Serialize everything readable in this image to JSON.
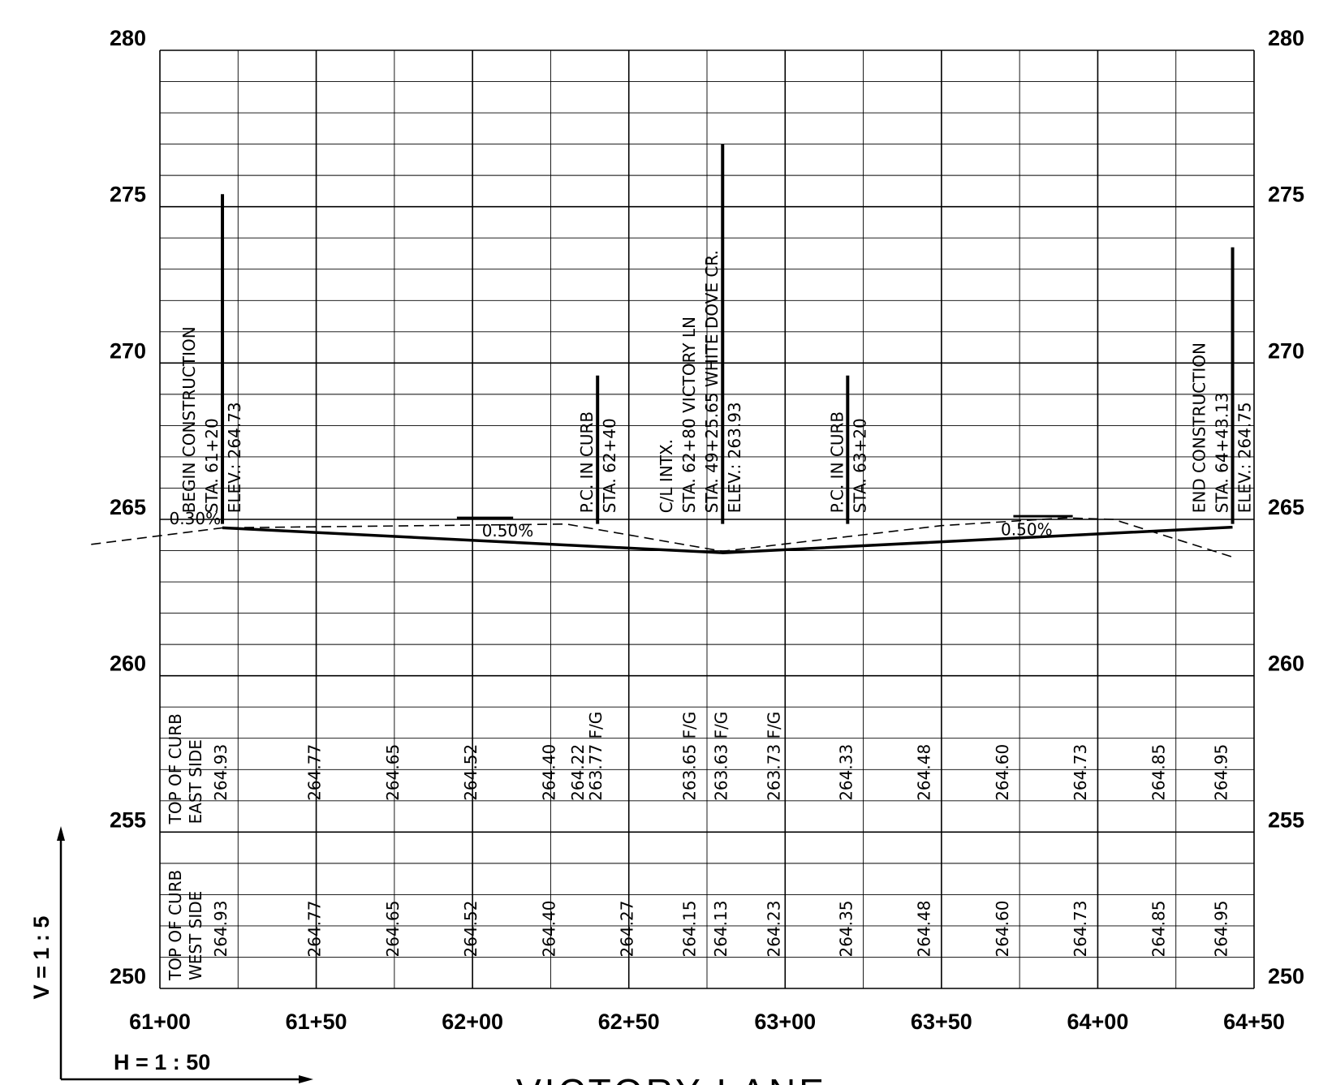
{
  "drawing": {
    "title": "VICTORY LANE",
    "scale_v": "V = 1 : 5",
    "scale_h": "H = 1 : 50"
  },
  "axes": {
    "elevations": [
      280,
      275,
      270,
      265,
      260,
      255,
      250
    ],
    "elevation_labels": [
      "280",
      "275",
      "270",
      "265",
      "260",
      "255",
      "250"
    ],
    "stations": [
      6100,
      6150,
      6200,
      6250,
      6300,
      6350,
      6400,
      6450
    ],
    "station_labels": [
      "61+00",
      "61+50",
      "62+00",
      "62+50",
      "63+00",
      "63+50",
      "64+00",
      "64+50"
    ]
  },
  "profile": {
    "proposed_grade": [
      [
        6120,
        264.73
      ],
      [
        6280,
        263.93
      ],
      [
        6443.13,
        264.75
      ]
    ],
    "existing_ground": [
      [
        6078,
        264.2
      ],
      [
        6120,
        264.73
      ],
      [
        6230,
        264.85
      ],
      [
        6280,
        263.98
      ],
      [
        6350,
        264.8
      ],
      [
        6390,
        265.05
      ],
      [
        6405,
        265.0
      ],
      [
        6443,
        263.8
      ]
    ],
    "slope_labels": [
      "0.30%",
      "0.50%",
      "0.50%"
    ],
    "slope_label_positions": [
      [
        6103,
        264.85
      ],
      [
        6203,
        264.45
      ],
      [
        6369,
        264.5
      ]
    ],
    "slope_ticks": [
      [
        6195,
        6213,
        265.05
      ],
      [
        6373,
        6392,
        265.1
      ]
    ]
  },
  "callouts": [
    {
      "id": "begin",
      "station": 6120,
      "top": 275.4,
      "lines": [
        "BEGIN CONSTRUCTION",
        "STA. 61+20",
        "ELEV.: 264.73"
      ]
    },
    {
      "id": "pc1",
      "station": 6240,
      "top": 269.6,
      "lines": [
        "P.C. IN CURB",
        "STA. 62+40"
      ]
    },
    {
      "id": "intx",
      "station": 6280,
      "top": 277.0,
      "lines": [
        "C/L INTX.",
        "STA. 62+80 VICTORY LN",
        "STA. 49+25.65 WHITE DOVE CR.",
        "ELEV.: 263.93"
      ]
    },
    {
      "id": "pc2",
      "station": 6320,
      "top": 269.6,
      "lines": [
        "P.C. IN CURB",
        "STA. 63+20"
      ]
    },
    {
      "id": "end",
      "station": 6443.13,
      "top": 273.7,
      "lines": [
        "END CONSTRUCTION",
        "STA. 64+43.13",
        "ELEV.: 264.75"
      ]
    }
  ],
  "curb_tables": {
    "east": {
      "label_lines": [
        "TOP OF CURB",
        "EAST SIDE"
      ],
      "values": [
        {
          "station": 6120,
          "lines": [
            "264.93"
          ]
        },
        {
          "station": 6150,
          "lines": [
            "264.77"
          ]
        },
        {
          "station": 6175,
          "lines": [
            "264.65"
          ]
        },
        {
          "station": 6200,
          "lines": [
            "264.52"
          ]
        },
        {
          "station": 6225,
          "lines": [
            "264.40"
          ]
        },
        {
          "station": 6240,
          "lines": [
            "264.22",
            "263.77 F/G"
          ]
        },
        {
          "station": 6270,
          "lines": [
            "263.65 F/G"
          ]
        },
        {
          "station": 6280,
          "lines": [
            "263.63 F/G"
          ]
        },
        {
          "station": 6297,
          "lines": [
            "263.73 F/G"
          ]
        },
        {
          "station": 6320,
          "lines": [
            "264.33"
          ]
        },
        {
          "station": 6345,
          "lines": [
            "264.48"
          ]
        },
        {
          "station": 6370,
          "lines": [
            "264.60"
          ]
        },
        {
          "station": 6395,
          "lines": [
            "264.73"
          ]
        },
        {
          "station": 6420,
          "lines": [
            "264.85"
          ]
        },
        {
          "station": 6440,
          "lines": [
            "264.95"
          ]
        }
      ]
    },
    "west": {
      "label_lines": [
        "TOP OF CURB",
        "WEST SIDE"
      ],
      "values": [
        {
          "station": 6120,
          "lines": [
            "264.93"
          ]
        },
        {
          "station": 6150,
          "lines": [
            "264.77"
          ]
        },
        {
          "station": 6175,
          "lines": [
            "264.65"
          ]
        },
        {
          "station": 6200,
          "lines": [
            "264.52"
          ]
        },
        {
          "station": 6225,
          "lines": [
            "264.40"
          ]
        },
        {
          "station": 6250,
          "lines": [
            "264.27"
          ]
        },
        {
          "station": 6270,
          "lines": [
            "264.15"
          ]
        },
        {
          "station": 6280,
          "lines": [
            "264.13"
          ]
        },
        {
          "station": 6297,
          "lines": [
            "264.23"
          ]
        },
        {
          "station": 6320,
          "lines": [
            "264.35"
          ]
        },
        {
          "station": 6345,
          "lines": [
            "264.48"
          ]
        },
        {
          "station": 6370,
          "lines": [
            "264.60"
          ]
        },
        {
          "station": 6395,
          "lines": [
            "264.73"
          ]
        },
        {
          "station": 6420,
          "lines": [
            "264.85"
          ]
        },
        {
          "station": 6440,
          "lines": [
            "264.95"
          ]
        }
      ]
    }
  }
}
